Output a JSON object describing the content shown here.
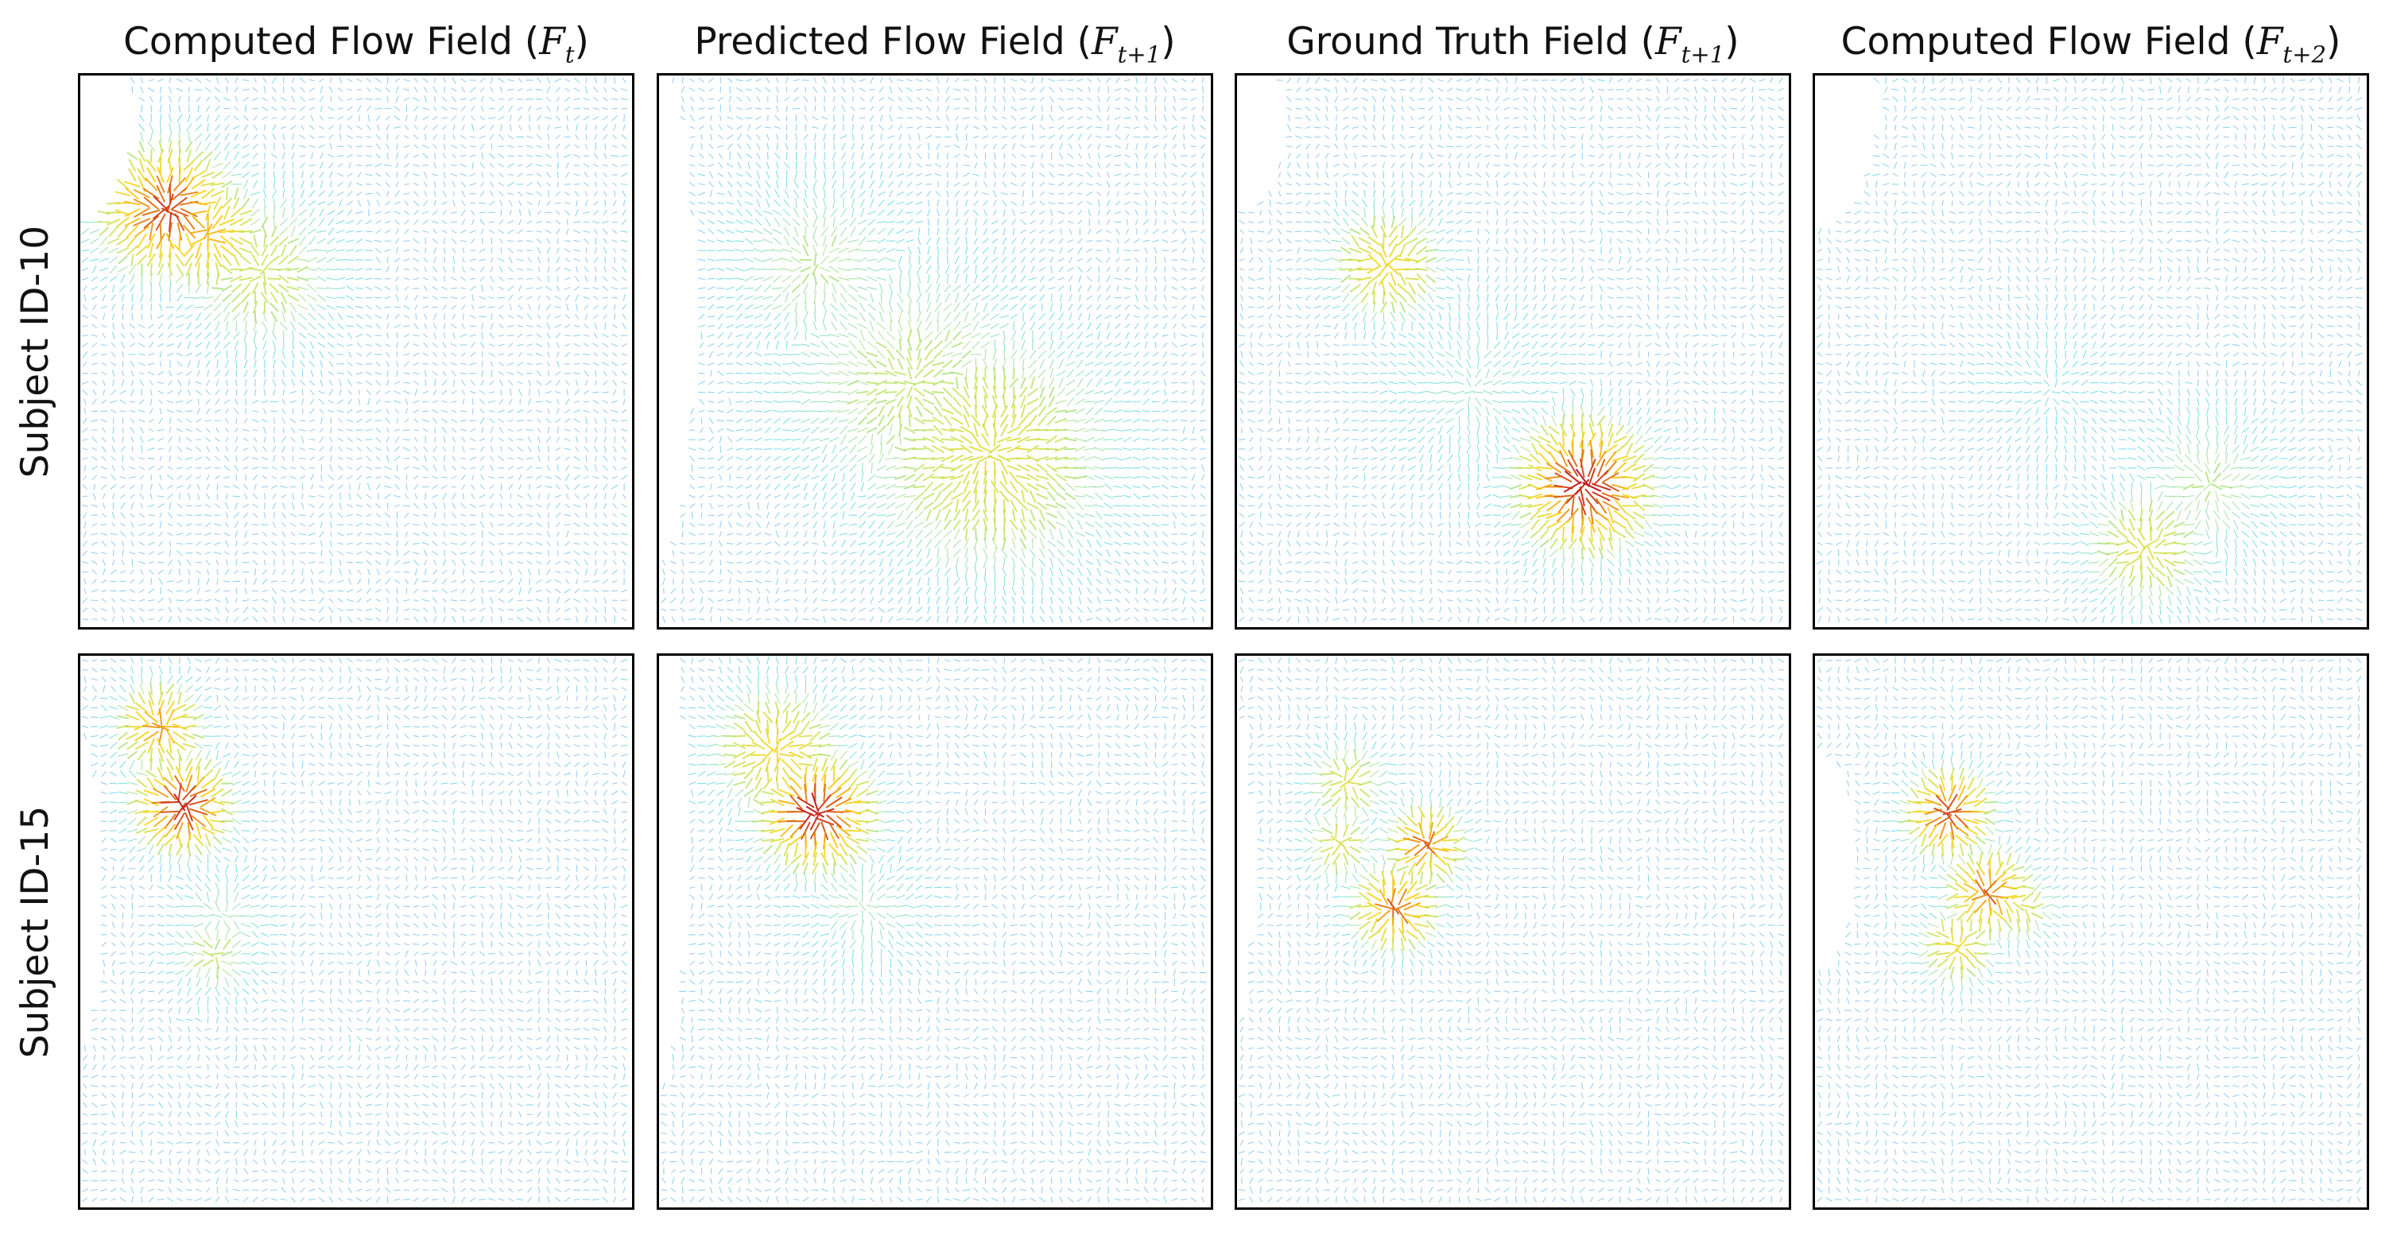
{
  "columns": [
    {
      "title_text": "Computed Flow Field (",
      "math_symbol": "F",
      "math_sub": "t",
      "title_close": ")"
    },
    {
      "title_text": "Predicted Flow Field (",
      "math_symbol": "F",
      "math_sub": "t+1",
      "title_close": ")"
    },
    {
      "title_text": "Ground Truth Field (",
      "math_symbol": "F",
      "math_sub": "t+1",
      "title_close": ")"
    },
    {
      "title_text": "Computed Flow Field (",
      "math_symbol": "F",
      "math_sub": "t+2",
      "title_close": ")"
    }
  ],
  "rows": [
    {
      "label": "Subject ID-10"
    },
    {
      "label": "Subject ID-15"
    }
  ],
  "colormap": {
    "low": "#4a7fe0",
    "mid_low": "#19c8e8",
    "mid": "#b8e04a",
    "mid_high": "#ffd000",
    "high": "#c1121f"
  }
}
